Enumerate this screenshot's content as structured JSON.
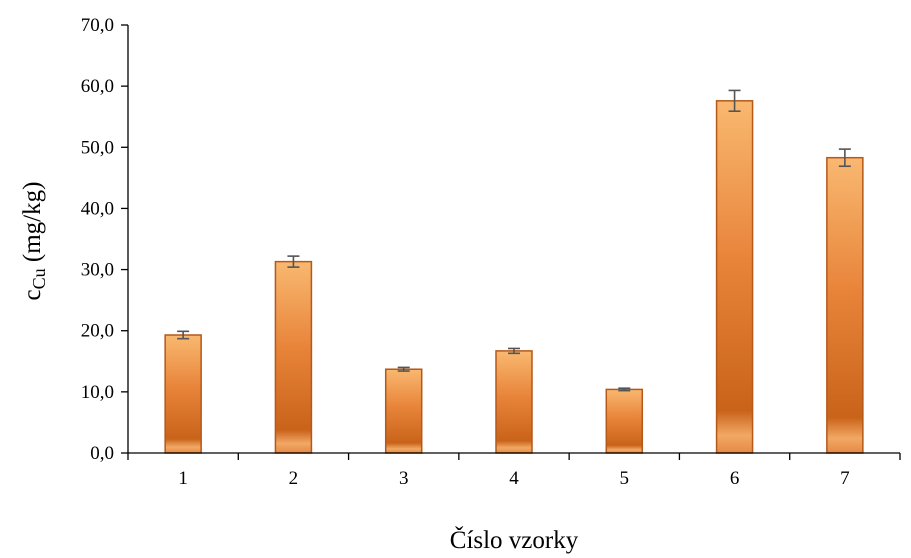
{
  "chart_data": {
    "type": "bar",
    "categories": [
      "1",
      "2",
      "3",
      "4",
      "5",
      "6",
      "7"
    ],
    "values": [
      19.3,
      31.3,
      13.7,
      16.7,
      10.4,
      57.6,
      48.3
    ],
    "error": [
      0.6,
      0.9,
      0.3,
      0.4,
      0.2,
      1.7,
      1.4
    ],
    "ylim": [
      0,
      70
    ],
    "yticks": [
      "0,0",
      "10,0",
      "20,0",
      "30,0",
      "40,0",
      "50,0",
      "60,0",
      "70,0"
    ],
    "xlabel": "Číslo vzorky",
    "ylabel_main": "c",
    "ylabel_sub": "Cu",
    "ylabel_unit": " (mg/kg)",
    "grid": false,
    "bar_color_light": "#f7b06a",
    "bar_color_dark": "#cc6414",
    "bar_edge": "#b4591a",
    "error_color": "#555555"
  }
}
